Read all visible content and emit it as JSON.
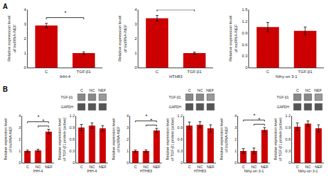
{
  "chart_data": [
    {
      "type": "bar",
      "xlabel": "IHH-4",
      "ylabel": "Relative expression level\nof lncRNA-NEF",
      "categories": [
        "C",
        "TGF-β1"
      ],
      "values": [
        2.9,
        1.0
      ],
      "errors": [
        0.15,
        0.08
      ],
      "color": "#CC0000",
      "ylim": [
        0,
        4
      ],
      "yticks": [
        0,
        1,
        2,
        3,
        4
      ],
      "grid": false,
      "annotations": [
        {
          "text": "A"
        },
        {
          "text": "*",
          "between": [
            "C",
            "TGF-β1"
          ]
        }
      ]
    },
    {
      "type": "bar",
      "xlabel": "HTH83",
      "ylabel": "Relative expression level\nof lncRNA-NEF",
      "categories": [
        "C",
        "TGF-β1"
      ],
      "values": [
        3.4,
        1.0
      ],
      "errors": [
        0.2,
        0.07
      ],
      "color": "#CC0000",
      "ylim": [
        0,
        4
      ],
      "yticks": [
        0,
        1,
        2,
        3,
        4
      ],
      "grid": false,
      "annotations": [
        {
          "text": "*",
          "between": [
            "C",
            "TGF-β1"
          ]
        }
      ]
    },
    {
      "type": "bar",
      "xlabel": "Nthy-ori 3-1",
      "ylabel": "Relative expression level\nof lncRNA-NEF",
      "categories": [
        "C",
        "TGF-β1"
      ],
      "values": [
        1.05,
        0.95
      ],
      "errors": [
        0.12,
        0.1
      ],
      "color": "#CC0000",
      "ylim": [
        0,
        1.5
      ],
      "yticks": [
        0,
        0.3,
        0.6,
        0.9,
        1.2,
        1.5
      ],
      "grid": false
    },
    {
      "type": "bar",
      "xlabel": "IHH-4",
      "ylabel": "Relative expression level\nof lncRNA-NEF",
      "categories": [
        "C",
        "NC",
        "NEF"
      ],
      "values": [
        1.0,
        1.05,
        2.65
      ],
      "errors": [
        0.08,
        0.1,
        0.2
      ],
      "color": "#CC0000",
      "ylim": [
        0,
        4
      ],
      "yticks": [
        0,
        1,
        2,
        3,
        4
      ],
      "grid": false,
      "annotations": [
        {
          "text": "B"
        },
        {
          "text": "*",
          "between": [
            "C",
            "NEF"
          ]
        },
        {
          "text": "*",
          "between": [
            "NC",
            "NEF"
          ]
        }
      ]
    },
    {
      "type": "blot",
      "categories": [
        "C",
        "NC",
        "NEF"
      ],
      "series": [
        {
          "name": "TGF-β1",
          "colors": [
            "#888888",
            "#888888",
            "#999999"
          ]
        },
        {
          "name": "GAPDH",
          "color": "#555555"
        }
      ]
    },
    {
      "type": "bar",
      "xlabel": "IHH-4",
      "ylabel": "Relative expression level\nof TGF-β1 protein (active)",
      "categories": [
        "C",
        "NC",
        "NEF"
      ],
      "values": [
        0.9,
        0.95,
        0.88
      ],
      "errors": [
        0.08,
        0.07,
        0.07
      ],
      "color": "#CC0000",
      "ylim": [
        0,
        1.2
      ],
      "yticks": [
        0,
        0.3,
        0.6,
        0.9,
        1.2
      ],
      "grid": false
    },
    {
      "type": "bar",
      "xlabel": "HTH83",
      "ylabel": "Relative expression level\nof lncRNA-NEF",
      "categories": [
        "C",
        "NC",
        "NEF"
      ],
      "values": [
        1.0,
        1.0,
        2.75
      ],
      "errors": [
        0.08,
        0.09,
        0.18
      ],
      "color": "#CC0000",
      "ylim": [
        0,
        4
      ],
      "yticks": [
        0,
        1,
        2,
        3,
        4
      ],
      "grid": false,
      "annotations": [
        {
          "text": "*",
          "between": [
            "C",
            "NEF"
          ]
        },
        {
          "text": "*",
          "between": [
            "NC",
            "NEF"
          ]
        }
      ]
    },
    {
      "type": "blot",
      "categories": [
        "C",
        "NC",
        "NEF"
      ],
      "series": [
        {
          "name": "TGF-β1",
          "colors": [
            "#888888",
            "#888888",
            "#999999"
          ]
        },
        {
          "name": "GAPDH",
          "color": "#555555"
        }
      ]
    },
    {
      "type": "bar",
      "xlabel": "HTH83",
      "ylabel": "Relative expression level\nof TGF-β1 protein (active)",
      "categories": [
        "C",
        "NC",
        "NEF"
      ],
      "values": [
        0.95,
        0.97,
        0.88
      ],
      "errors": [
        0.09,
        0.08,
        0.09
      ],
      "color": "#CC0000",
      "ylim": [
        0,
        1.2
      ],
      "yticks": [
        0,
        0.3,
        0.6,
        0.9,
        1.2
      ],
      "grid": false
    },
    {
      "type": "bar",
      "xlabel": "Nthy-ori 3-1",
      "ylabel": "Relative expression level\nof lncRNA-NEF",
      "categories": [
        "C",
        "NC",
        "NEF"
      ],
      "values": [
        1.0,
        1.0,
        2.8
      ],
      "errors": [
        0.2,
        0.25,
        0.2
      ],
      "color": "#CC0000",
      "ylim": [
        0,
        4
      ],
      "yticks": [
        0,
        1,
        2,
        3,
        4
      ],
      "grid": false,
      "annotations": [
        {
          "text": "*",
          "between": [
            "C",
            "NEF"
          ]
        },
        {
          "text": "*",
          "between": [
            "NC",
            "NEF"
          ]
        }
      ]
    },
    {
      "type": "blot",
      "categories": [
        "C",
        "NC",
        "NEF"
      ],
      "series": [
        {
          "name": "TGF-β1",
          "colors": [
            "#888888",
            "#888888",
            "#999999"
          ]
        },
        {
          "name": "GAPDH",
          "color": "#555555"
        }
      ]
    },
    {
      "type": "bar",
      "xlabel": "Nthy-ori 3-1",
      "ylabel": "Relative expression level\nof TGF-β1 protein (active)",
      "categories": [
        "C",
        "NC",
        "NEF"
      ],
      "values": [
        0.92,
        1.0,
        0.88
      ],
      "errors": [
        0.1,
        0.07,
        0.09
      ],
      "color": "#CC0000",
      "ylim": [
        0,
        1.2
      ],
      "yticks": [
        0,
        0.3,
        0.6,
        0.9,
        1.2
      ],
      "grid": false
    }
  ]
}
